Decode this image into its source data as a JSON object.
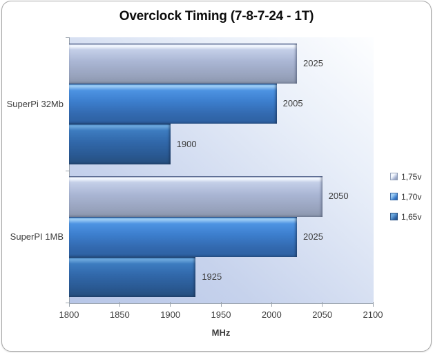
{
  "chart_data": {
    "type": "bar",
    "orientation": "horizontal",
    "title": "Overclock Timing (7-8-7-24 - 1T)",
    "categories": [
      "SuperPi 32Mb",
      "SuperPI 1MB"
    ],
    "series": [
      {
        "name": "1,75v",
        "color": "#a9b5d3",
        "values": [
          2025,
          2050
        ]
      },
      {
        "name": "1,70v",
        "color": "#3c7ecd",
        "values": [
          2005,
          2025
        ]
      },
      {
        "name": "1,65v",
        "color": "#3168aa",
        "values": [
          1900,
          1925
        ]
      }
    ],
    "xlabel": "MHz",
    "xlim": [
      1800,
      2100
    ],
    "xticks": [
      1800,
      1850,
      1900,
      1950,
      2000,
      2050,
      2100
    ],
    "grid": false,
    "data_labels": true,
    "legend_position": "right",
    "plot_background_gradient": [
      "#b7c6e7",
      "#fdfeff"
    ],
    "axis_color": "#9aa3ad",
    "text_color": "#3d3d3d"
  }
}
